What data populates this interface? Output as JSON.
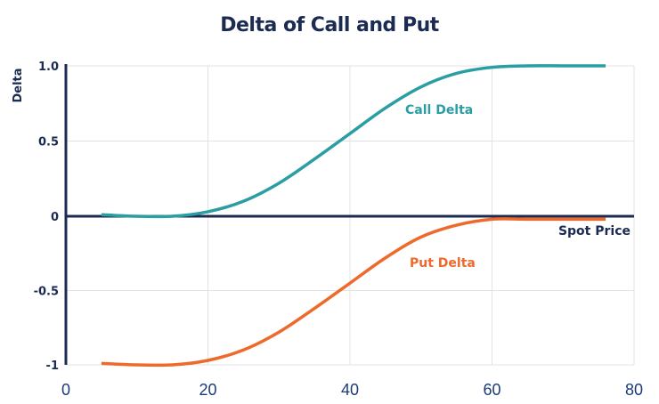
{
  "chart_data": {
    "type": "line",
    "title": "Delta of Call and Put",
    "xlabel": "Spot Price",
    "ylabel": "Delta",
    "xlim": [
      0,
      80
    ],
    "ylim": [
      -1,
      1
    ],
    "x_ticks": [
      "0",
      "20",
      "40",
      "60",
      "80"
    ],
    "y_ticks": [
      "1.0",
      "0.5",
      "0",
      "-0.5",
      "-1"
    ],
    "grid": true,
    "legend": "inline annotations",
    "series": [
      {
        "name": "Call Delta",
        "color": "#2a9ea3",
        "x": [
          5,
          10,
          15,
          20,
          25,
          30,
          35,
          40,
          45,
          50,
          55,
          60,
          65,
          70,
          76
        ],
        "values": [
          0.01,
          0.0,
          0.0,
          0.03,
          0.1,
          0.22,
          0.38,
          0.55,
          0.72,
          0.86,
          0.95,
          0.99,
          1.0,
          1.0,
          1.0
        ]
      },
      {
        "name": "Put Delta",
        "color": "#ee6a2c",
        "x": [
          5,
          10,
          15,
          20,
          25,
          30,
          35,
          40,
          45,
          50,
          55,
          60,
          65,
          70,
          76
        ],
        "values": [
          -0.99,
          -1.0,
          -1.0,
          -0.97,
          -0.9,
          -0.78,
          -0.62,
          -0.45,
          -0.28,
          -0.14,
          -0.06,
          -0.02,
          -0.02,
          -0.02,
          -0.02
        ]
      }
    ],
    "annotations": [
      {
        "text": "Call Delta",
        "x": 50,
        "y": 0.78,
        "color": "#2a9ea3"
      },
      {
        "text": "Put Delta",
        "x": 44,
        "y": -0.62,
        "color": "#ee6a2c"
      },
      {
        "text": "Spot Price",
        "x": 73,
        "y": -0.1,
        "color": "#1c2b52"
      }
    ]
  },
  "colors": {
    "axis": "#1c2b52",
    "grid": "#e3e3e3",
    "call": "#2a9ea3",
    "put": "#ee6a2c"
  }
}
